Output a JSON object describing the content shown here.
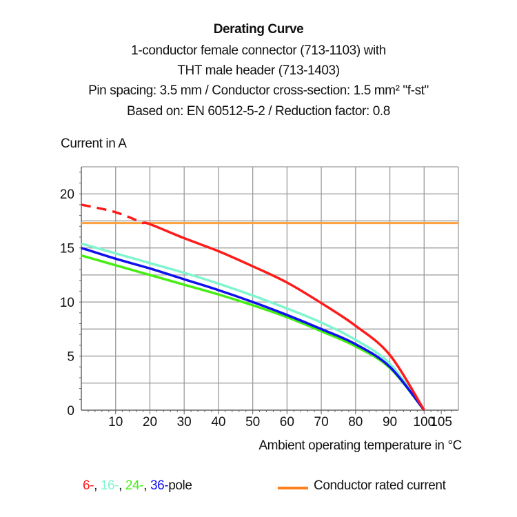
{
  "titles": [
    "Derating Curve",
    "1-conductor female connector (713-1103) with",
    "THT male header (713-1403)",
    "Pin spacing: 3.5 mm / Conductor cross-section: 1.5 mm² \"f-st\"",
    "Based on: EN 60512-5-2 / Reduction factor: 0.8"
  ],
  "chart_data": {
    "type": "line",
    "title": "Derating Curve",
    "xlabel": "Ambient operating temperature in °C",
    "ylabel": "Current in A",
    "xlim": [
      0,
      110
    ],
    "ylim": [
      0,
      22.5
    ],
    "xticks": [
      10,
      20,
      30,
      40,
      50,
      60,
      70,
      80,
      90,
      100,
      105
    ],
    "yticks": [
      0,
      5,
      10,
      15,
      20
    ],
    "grid": true,
    "x": [
      0,
      10,
      20,
      30,
      40,
      50,
      60,
      70,
      80,
      90,
      100
    ],
    "series": [
      {
        "name": "6-",
        "color": "#ff1a1a",
        "values": [
          19.0,
          18.3,
          17.2,
          15.9,
          14.7,
          13.3,
          11.8,
          9.9,
          7.8,
          5.1,
          0
        ],
        "dashed_until_x": 18
      },
      {
        "name": "16-",
        "color": "#7ff5d0",
        "values": [
          15.4,
          14.5,
          13.6,
          12.7,
          11.7,
          10.6,
          9.4,
          8.1,
          6.5,
          4.3,
          0
        ]
      },
      {
        "name": "24-",
        "color": "#44ee11",
        "values": [
          14.3,
          13.4,
          12.5,
          11.6,
          10.7,
          9.7,
          8.6,
          7.3,
          5.9,
          3.9,
          0
        ]
      },
      {
        "name": "36-",
        "color": "#1010ee",
        "values": [
          15.0,
          14.0,
          13.1,
          12.1,
          11.1,
          10.0,
          8.8,
          7.5,
          6.1,
          4.0,
          0
        ]
      }
    ],
    "reference_line": {
      "name": "Conductor rated current",
      "y": 17.3,
      "color": "#ffa040"
    },
    "legend": {
      "pole_suffix": "pole",
      "sep": ", ",
      "placement": "bottom"
    }
  },
  "legend_line_color": "#ff7f1a"
}
